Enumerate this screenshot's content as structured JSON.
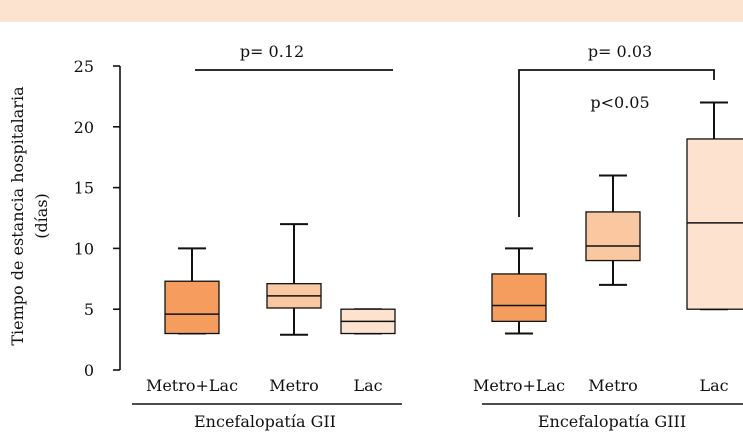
{
  "colors": {
    "band": "#fbe3cf",
    "metro_lac": "#f59d5f",
    "metro": "#f9c7a0",
    "lac": "#fde3cf",
    "stroke": "#111111"
  },
  "chart_data": {
    "type": "box",
    "ylabel_line1": "Tiempo de estancia hospitalaria",
    "ylabel_line2": "(días)",
    "ylim": [
      0,
      25
    ],
    "yticks": [
      "0",
      "5",
      "10",
      "15",
      "20",
      "25"
    ],
    "grid": false,
    "groups": [
      {
        "name": "Encefalopatía GII",
        "boxes": [
          {
            "label": "Metro+Lac",
            "whisker_low": 3,
            "q1": 3,
            "median": 4.6,
            "q3": 7.3,
            "whisker_high": 10,
            "color": "#f59d5f"
          },
          {
            "label": "Metro",
            "whisker_low": 2.9,
            "q1": 5.1,
            "median": 6.1,
            "q3": 7.1,
            "whisker_high": 12,
            "color": "#f9c7a0"
          },
          {
            "label": "Lac",
            "whisker_low": 3,
            "q1": 3,
            "median": 4,
            "q3": 5,
            "whisker_high": 5,
            "color": "#fde3cf"
          }
        ]
      },
      {
        "name": "Encefalopatía GIII",
        "boxes": [
          {
            "label": "Metro+Lac",
            "whisker_low": 3,
            "q1": 4,
            "median": 5.3,
            "q3": 7.9,
            "whisker_high": 10,
            "color": "#f59d5f"
          },
          {
            "label": "Metro",
            "whisker_low": 7,
            "q1": 9,
            "median": 10.2,
            "q3": 13,
            "whisker_high": 16,
            "color": "#f9c7a0"
          },
          {
            "label": "Lac",
            "whisker_low": 5,
            "q1": 5,
            "median": 12.1,
            "q3": 19,
            "whisker_high": 22,
            "color": "#fde3cf"
          }
        ]
      }
    ],
    "annotations": [
      {
        "text": "p= 0.12"
      },
      {
        "text": "p= 0.03"
      },
      {
        "text": "p<0.05"
      }
    ]
  }
}
